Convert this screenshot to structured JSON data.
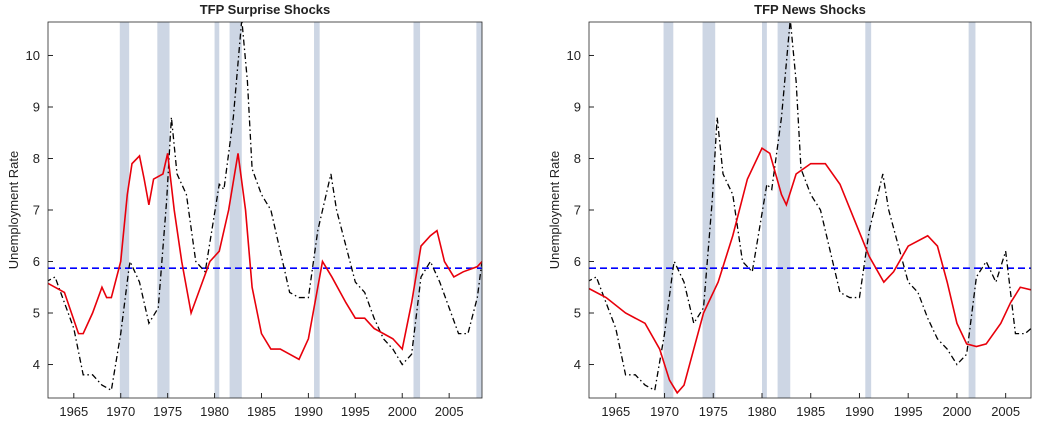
{
  "chart_data": [
    {
      "type": "line",
      "title": "TFP Surprise Shocks",
      "y_label": "Unemployment Rate",
      "xlim": [
        1962.25,
        2008.5
      ],
      "ylim": [
        3.35,
        10.65
      ],
      "xticks": [
        1965,
        1970,
        1975,
        1980,
        1985,
        1990,
        1995,
        2000,
        2005
      ],
      "yticks": [
        4,
        5,
        6,
        7,
        8,
        9,
        10
      ],
      "shaded_periods": [
        [
          1969.9,
          1970.9
        ],
        [
          1973.9,
          1975.2
        ],
        [
          1980.0,
          1980.5
        ],
        [
          1981.6,
          1982.9
        ],
        [
          1990.6,
          1991.2
        ],
        [
          2001.2,
          2001.9
        ],
        [
          2007.9,
          2009.5
        ]
      ],
      "shade_color": "#cdd6e4",
      "reference_line": {
        "value": 5.87,
        "color": "#0000ff"
      },
      "series": [
        {
          "color": "#000000",
          "style": "dashdot",
          "x": [
            1962,
            1963,
            1964,
            1965,
            1966,
            1967,
            1968,
            1969,
            1970,
            1970.9,
            1971,
            1972,
            1973,
            1974,
            1974.9,
            1975.4,
            1976,
            1977,
            1978,
            1979,
            1980.5,
            1981,
            1982,
            1982.9,
            1983.5,
            1984,
            1985,
            1986,
            1987,
            1988,
            1989,
            1990,
            1991,
            1992.4,
            1993,
            1994,
            1995,
            1996,
            1997,
            1998,
            1999,
            2000,
            2001,
            2002,
            2003,
            2004,
            2005,
            2006,
            2007,
            2008,
            2008.5
          ],
          "values": [
            5.6,
            5.7,
            5.2,
            4.7,
            3.8,
            3.8,
            3.6,
            3.5,
            4.6,
            5.9,
            6.0,
            5.6,
            4.8,
            5.1,
            7.2,
            8.8,
            7.7,
            7.3,
            6.0,
            5.8,
            7.5,
            7.4,
            8.8,
            10.7,
            9.5,
            7.8,
            7.3,
            7.0,
            6.2,
            5.4,
            5.3,
            5.3,
            6.6,
            7.7,
            7.0,
            6.3,
            5.6,
            5.4,
            4.9,
            4.5,
            4.3,
            4.0,
            4.2,
            5.7,
            6.0,
            5.6,
            5.1,
            4.6,
            4.6,
            5.3,
            6.0
          ]
        },
        {
          "color": "#e8000b",
          "style": "solid",
          "x": [
            1962,
            1964,
            1965.5,
            1966,
            1967,
            1968,
            1968.5,
            1969,
            1970,
            1970.7,
            1971.2,
            1972,
            1972.5,
            1973,
            1973.5,
            1974.5,
            1975,
            1975.7,
            1976.5,
            1977.5,
            1978.5,
            1979.5,
            1980.5,
            1981.5,
            1982.5,
            1983.3,
            1984,
            1985,
            1986,
            1987,
            1988,
            1989,
            1990,
            1991,
            1991.5,
            1992.5,
            1994,
            1995,
            1996,
            1997,
            1998,
            1999,
            2000,
            2001,
            2002,
            2003,
            2003.7,
            2004.5,
            2005.5,
            2006.5,
            2008,
            2008.5
          ],
          "values": [
            5.6,
            5.4,
            4.6,
            4.6,
            5.0,
            5.5,
            5.3,
            5.3,
            6.0,
            7.3,
            7.9,
            8.05,
            7.6,
            7.1,
            7.6,
            7.7,
            8.1,
            7.0,
            6.0,
            5.0,
            5.5,
            6.0,
            6.2,
            7.0,
            8.1,
            7.0,
            5.5,
            4.6,
            4.3,
            4.3,
            4.2,
            4.1,
            4.5,
            5.5,
            6.0,
            5.7,
            5.2,
            4.9,
            4.9,
            4.7,
            4.6,
            4.5,
            4.3,
            5.2,
            6.3,
            6.5,
            6.6,
            6.0,
            5.7,
            5.8,
            5.9,
            6.0
          ]
        }
      ]
    },
    {
      "type": "line",
      "title": "TFP News Shocks",
      "y_label": "Unemployment Rate",
      "xlim": [
        1962.25,
        2007.6
      ],
      "ylim": [
        3.35,
        10.65
      ],
      "xticks": [
        1965,
        1970,
        1975,
        1980,
        1985,
        1990,
        1995,
        2000,
        2005
      ],
      "yticks": [
        4,
        5,
        6,
        7,
        8,
        9,
        10
      ],
      "shaded_periods": [
        [
          1969.9,
          1970.9
        ],
        [
          1973.9,
          1975.2
        ],
        [
          1980.0,
          1980.5
        ],
        [
          1981.6,
          1982.9
        ],
        [
          1990.6,
          1991.2
        ],
        [
          2001.2,
          2001.9
        ]
      ],
      "shade_color": "#cdd6e4",
      "reference_line": {
        "value": 5.87,
        "color": "#0000ff"
      },
      "series": [
        {
          "color": "#000000",
          "style": "dashdot",
          "x": [
            1962,
            1963,
            1964,
            1965,
            1966,
            1967,
            1968,
            1969,
            1970,
            1970.9,
            1971,
            1972,
            1973,
            1974,
            1974.9,
            1975.4,
            1976,
            1977,
            1978,
            1979,
            1980.5,
            1981,
            1982,
            1982.9,
            1983.5,
            1984,
            1985,
            1986,
            1987,
            1988,
            1989,
            1990,
            1991,
            1992.4,
            1993,
            1994,
            1995,
            1996,
            1997,
            1998,
            1999,
            2000,
            2001,
            2002,
            2003,
            2004,
            2005,
            2006,
            2007,
            2007.6
          ],
          "values": [
            5.6,
            5.7,
            5.2,
            4.7,
            3.8,
            3.8,
            3.6,
            3.5,
            4.6,
            5.9,
            6.0,
            5.6,
            4.8,
            5.1,
            7.2,
            8.8,
            7.7,
            7.3,
            6.0,
            5.8,
            7.5,
            7.4,
            8.8,
            10.7,
            9.5,
            7.8,
            7.3,
            7.0,
            6.2,
            5.4,
            5.3,
            5.3,
            6.6,
            7.7,
            7.0,
            6.3,
            5.6,
            5.4,
            4.9,
            4.5,
            4.3,
            4.0,
            4.2,
            5.7,
            6.0,
            5.6,
            6.2,
            4.6,
            4.6,
            4.7
          ]
        },
        {
          "color": "#e8000b",
          "style": "solid",
          "x": [
            1962,
            1964,
            1966,
            1968,
            1969.5,
            1970.5,
            1971.3,
            1972,
            1973,
            1974,
            1975.5,
            1977,
            1978.5,
            1980,
            1980.8,
            1982,
            1982.5,
            1983.5,
            1985,
            1986.5,
            1988,
            1989.5,
            1991,
            1992.5,
            1993.5,
            1995,
            1997,
            1998,
            1999,
            2000,
            2001,
            2002,
            2003,
            2004.5,
            2005.5,
            2006.5,
            2007.6
          ],
          "values": [
            5.5,
            5.3,
            5.0,
            4.8,
            4.3,
            3.7,
            3.45,
            3.6,
            4.3,
            5.0,
            5.6,
            6.5,
            7.6,
            8.2,
            8.1,
            7.3,
            7.1,
            7.7,
            7.9,
            7.9,
            7.5,
            6.8,
            6.1,
            5.6,
            5.8,
            6.3,
            6.5,
            6.3,
            5.6,
            4.8,
            4.4,
            4.35,
            4.4,
            4.8,
            5.2,
            5.5,
            5.45
          ]
        }
      ]
    }
  ]
}
